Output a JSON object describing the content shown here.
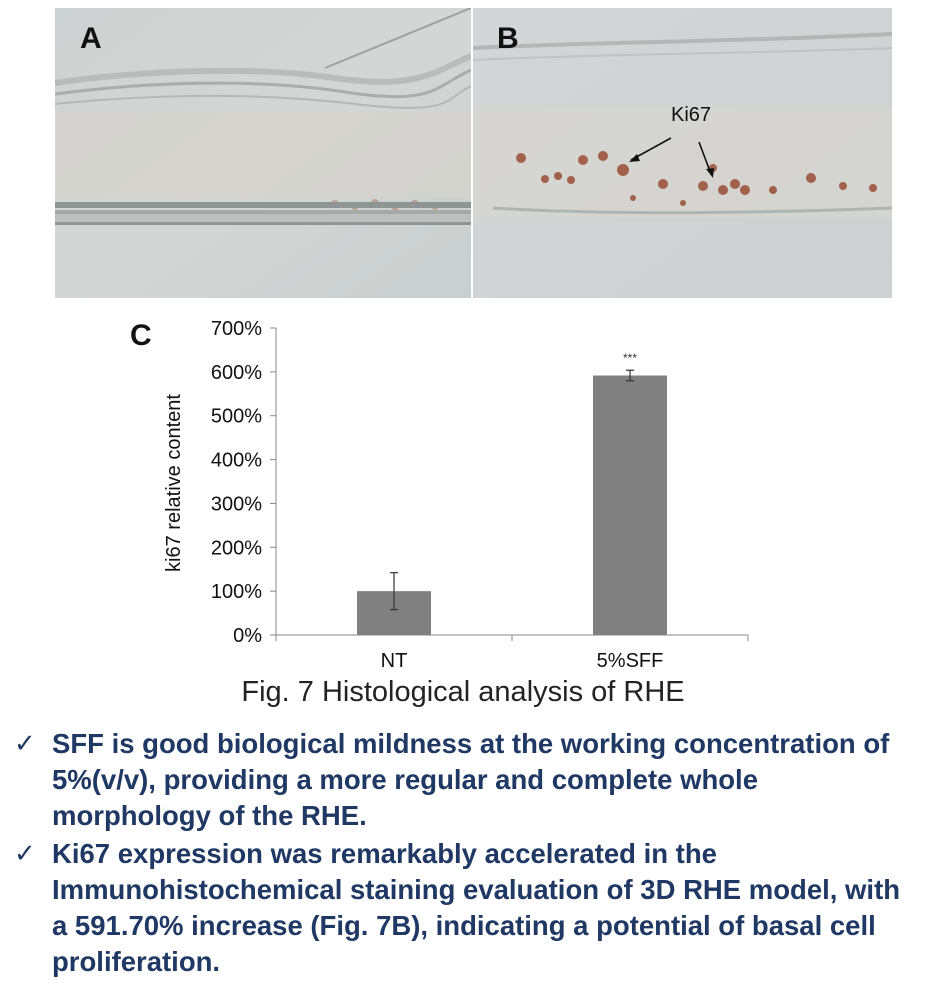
{
  "panels": {
    "a_label": "A",
    "b_label": "B",
    "ki67_label": "Ki67"
  },
  "chart_data": {
    "type": "bar",
    "panel_label": "C",
    "categories": [
      "NT",
      "5%SFF"
    ],
    "values": [
      100,
      591.7
    ],
    "errors": [
      42,
      12
    ],
    "significance": [
      "",
      "***"
    ],
    "ylabel": "ki67 relative content",
    "ylim": [
      0,
      700
    ],
    "yticks": [
      "0%",
      "100%",
      "200%",
      "300%",
      "400%",
      "500%",
      "600%",
      "700%"
    ],
    "grid": false,
    "bar_color": "#808080"
  },
  "caption": "Fig. 7 Histological analysis of RHE",
  "bullets": [
    "SFF is good biological mildness at the working concentration of 5%(v/v), providing a more regular and complete whole morphology of the RHE.",
    "Ki67 expression was remarkably accelerated in the Immunohistochemical staining evaluation of 3D RHE model, with a 591.70% increase (Fig. 7B), indicating a potential of basal cell proliferation."
  ],
  "check_glyph": "✓"
}
